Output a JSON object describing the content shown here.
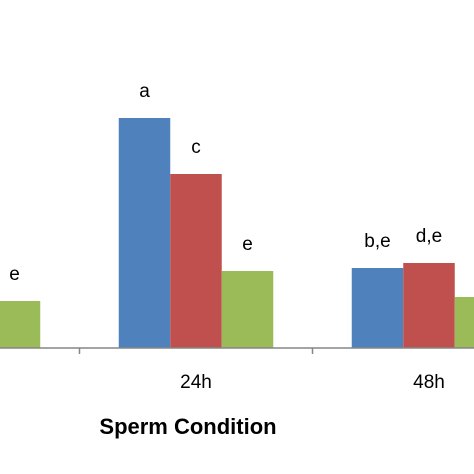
{
  "chart_data": {
    "type": "bar",
    "x_label": "Sperm Condition",
    "categories": [
      null,
      "24h",
      "48h"
    ],
    "series": [
      {
        "color": "#4f81bd",
        "values": [
          null,
          230,
          80
        ],
        "value_labels": [
          null,
          "a",
          "b,e"
        ]
      },
      {
        "color": "#c0504d",
        "values": [
          null,
          174,
          85
        ],
        "value_labels": [
          null,
          "c",
          "d,e"
        ]
      },
      {
        "color": "#9bbb59",
        "values": [
          47,
          77,
          51
        ],
        "value_labels": [
          "e",
          "e",
          null
        ]
      }
    ]
  }
}
